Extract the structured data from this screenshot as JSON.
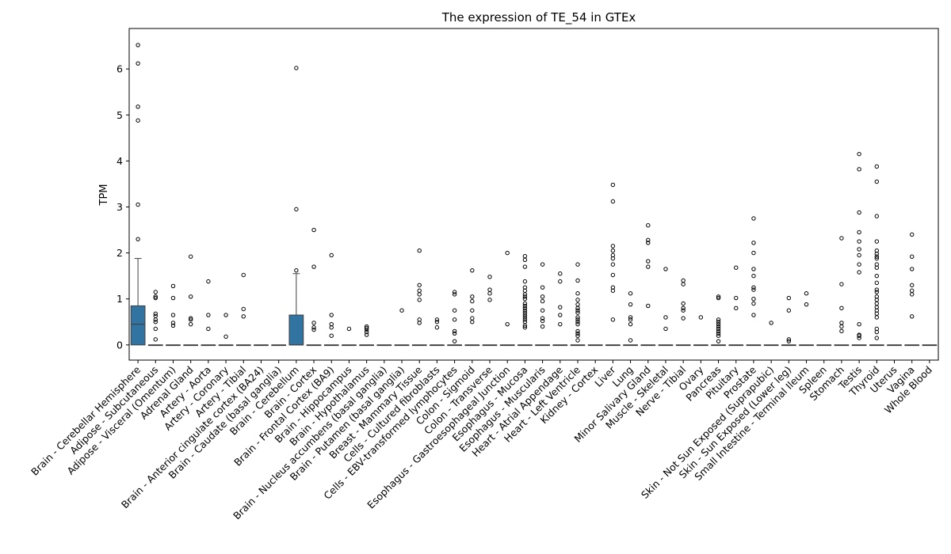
{
  "chart_data": {
    "type": "box",
    "title": "The expression of TE_54 in GTEx",
    "xlabel": "",
    "ylabel": "TPM",
    "ylim": [
      -0.33,
      6.88
    ],
    "yticks": [
      0,
      1,
      2,
      3,
      4,
      5,
      6
    ],
    "box_color": "#3274a1",
    "categories": [
      "Brain - Cerebellar Hemisphere",
      "Adipose - Subcutaneous",
      "Adipose - Visceral (Omentum)",
      "Adrenal Gland",
      "Artery - Aorta",
      "Artery - Coronary",
      "Artery - Tibial",
      "Brain - Anterior cingulate cortex (BA24)",
      "Brain - Caudate (basal ganglia)",
      "Brain - Cerebellum",
      "Brain - Cortex",
      "Brain - Frontal Cortex (BA9)",
      "Brain - Hippocampus",
      "Brain - Hypothalamus",
      "Brain - Nucleus accumbens (basal ganglia)",
      "Brain - Putamen (basal ganglia)",
      "Breast - Mammary Tissue",
      "Cells - Cultured fibroblasts",
      "Cells - EBV-transformed lymphocytes",
      "Colon - Sigmoid",
      "Colon - Transverse",
      "Esophagus - Gastroesophageal Junction",
      "Esophagus - Mucosa",
      "Esophagus - Muscularis",
      "Heart - Atrial Appendage",
      "Heart - Left Ventricle",
      "Kidney - Cortex",
      "Liver",
      "Lung",
      "Minor Salivary Gland",
      "Muscle - Skeletal",
      "Nerve - Tibial",
      "Ovary",
      "Pancreas",
      "Pituitary",
      "Prostate",
      "Skin - Not Sun Exposed (Suprapubic)",
      "Skin - Sun Exposed (Lower leg)",
      "Small Intestine - Terminal Ileum",
      "Spleen",
      "Stomach",
      "Testis",
      "Thyroid",
      "Uterus",
      "Vagina",
      "Whole Blood"
    ],
    "boxes": [
      {
        "q1": 0,
        "median": 0.45,
        "q3": 0.85,
        "whisker_low": 0,
        "whisker_high": 1.88,
        "outliers": [
          2.3,
          3.05,
          4.88,
          5.18,
          6.12,
          6.52
        ]
      },
      {
        "q1": 0,
        "median": 0,
        "q3": 0,
        "whisker_low": 0,
        "whisker_high": 0,
        "outliers": [
          0.12,
          0.35,
          0.5,
          0.55,
          0.63,
          0.68,
          1.02,
          1.05,
          1.15
        ]
      },
      {
        "q1": 0,
        "median": 0,
        "q3": 0,
        "whisker_low": 0,
        "whisker_high": 0,
        "outliers": [
          0.42,
          0.48,
          0.65,
          1.02,
          1.28
        ]
      },
      {
        "q1": 0,
        "median": 0,
        "q3": 0,
        "whisker_low": 0,
        "whisker_high": 0,
        "outliers": [
          0.45,
          0.55,
          0.58,
          1.05,
          1.92
        ]
      },
      {
        "q1": 0,
        "median": 0,
        "q3": 0,
        "whisker_low": 0,
        "whisker_high": 0,
        "outliers": [
          0.35,
          0.65,
          1.38
        ]
      },
      {
        "q1": 0,
        "median": 0,
        "q3": 0,
        "whisker_low": 0,
        "whisker_high": 0,
        "outliers": [
          0.18,
          0.65
        ]
      },
      {
        "q1": 0,
        "median": 0,
        "q3": 0,
        "whisker_low": 0,
        "whisker_high": 0,
        "outliers": [
          0.62,
          0.78,
          1.52
        ]
      },
      {
        "q1": 0,
        "median": 0,
        "q3": 0,
        "whisker_low": 0,
        "whisker_high": 0,
        "outliers": []
      },
      {
        "q1": 0,
        "median": 0,
        "q3": 0,
        "whisker_low": 0,
        "whisker_high": 0,
        "outliers": []
      },
      {
        "q1": 0,
        "median": 0,
        "q3": 0.65,
        "whisker_low": 0,
        "whisker_high": 1.55,
        "outliers": [
          1.62,
          2.95,
          6.02
        ]
      },
      {
        "q1": 0,
        "median": 0,
        "q3": 0,
        "whisker_low": 0,
        "whisker_high": 0,
        "outliers": [
          0.33,
          0.38,
          0.48,
          1.7,
          2.5
        ]
      },
      {
        "q1": 0,
        "median": 0,
        "q3": 0,
        "whisker_low": 0,
        "whisker_high": 0,
        "outliers": [
          0.2,
          0.38,
          0.45,
          0.65,
          1.95
        ]
      },
      {
        "q1": 0,
        "median": 0,
        "q3": 0,
        "whisker_low": 0,
        "whisker_high": 0,
        "outliers": [
          0.35
        ]
      },
      {
        "q1": 0,
        "median": 0,
        "q3": 0,
        "whisker_low": 0,
        "whisker_high": 0,
        "outliers": [
          0.22,
          0.28,
          0.33,
          0.37,
          0.4
        ]
      },
      {
        "q1": 0,
        "median": 0,
        "q3": 0,
        "whisker_low": 0,
        "whisker_high": 0,
        "outliers": []
      },
      {
        "q1": 0,
        "median": 0,
        "q3": 0,
        "whisker_low": 0,
        "whisker_high": 0,
        "outliers": [
          0.75
        ]
      },
      {
        "q1": 0,
        "median": 0,
        "q3": 0,
        "whisker_low": 0,
        "whisker_high": 0,
        "outliers": [
          0.48,
          0.55,
          0.98,
          1.1,
          1.18,
          1.3,
          2.05
        ]
      },
      {
        "q1": 0,
        "median": 0,
        "q3": 0,
        "whisker_low": 0,
        "whisker_high": 0,
        "outliers": [
          0.38,
          0.5,
          0.55
        ]
      },
      {
        "q1": 0,
        "median": 0,
        "q3": 0,
        "whisker_low": 0,
        "whisker_high": 0,
        "outliers": [
          0.08,
          0.25,
          0.3,
          0.55,
          0.75,
          1.1,
          1.15
        ]
      },
      {
        "q1": 0,
        "median": 0,
        "q3": 0,
        "whisker_low": 0,
        "whisker_high": 0,
        "outliers": [
          0.5,
          0.58,
          0.75,
          0.95,
          1.05,
          1.62
        ]
      },
      {
        "q1": 0,
        "median": 0,
        "q3": 0,
        "whisker_low": 0,
        "whisker_high": 0,
        "outliers": [
          0.98,
          1.12,
          1.2,
          1.48
        ]
      },
      {
        "q1": 0,
        "median": 0,
        "q3": 0,
        "whisker_low": 0,
        "whisker_high": 0,
        "outliers": [
          0.45,
          2.0
        ]
      },
      {
        "q1": 0,
        "median": 0,
        "q3": 0,
        "whisker_low": 0,
        "whisker_high": 0,
        "outliers": [
          0.38,
          0.42,
          0.5,
          0.55,
          0.6,
          0.65,
          0.7,
          0.75,
          0.8,
          0.85,
          0.9,
          1.0,
          1.05,
          1.1,
          1.18,
          1.25,
          1.38,
          1.7,
          1.85,
          1.93
        ]
      },
      {
        "q1": 0,
        "median": 0,
        "q3": 0,
        "whisker_low": 0,
        "whisker_high": 0,
        "outliers": [
          0.4,
          0.52,
          0.58,
          0.75,
          0.95,
          1.05,
          1.25,
          1.75
        ]
      },
      {
        "q1": 0,
        "median": 0,
        "q3": 0,
        "whisker_low": 0,
        "whisker_high": 0,
        "outliers": [
          0.45,
          0.65,
          0.82,
          1.38,
          1.55
        ]
      },
      {
        "q1": 0,
        "median": 0,
        "q3": 0,
        "whisker_low": 0,
        "whisker_high": 0,
        "outliers": [
          0.1,
          0.2,
          0.25,
          0.3,
          0.45,
          0.5,
          0.55,
          0.6,
          0.7,
          0.75,
          0.8,
          0.88,
          0.98,
          1.12,
          1.4,
          1.75
        ]
      },
      {
        "q1": 0,
        "median": 0,
        "q3": 0,
        "whisker_low": 0,
        "whisker_high": 0,
        "outliers": []
      },
      {
        "q1": 0,
        "median": 0,
        "q3": 0,
        "whisker_low": 0,
        "whisker_high": 0,
        "outliers": [
          0.55,
          1.18,
          1.25,
          1.52,
          1.75,
          1.88,
          1.95,
          2.05,
          2.15,
          3.12,
          3.48
        ]
      },
      {
        "q1": 0,
        "median": 0,
        "q3": 0,
        "whisker_low": 0,
        "whisker_high": 0,
        "outliers": [
          0.1,
          0.45,
          0.55,
          0.6,
          0.88,
          1.12
        ]
      },
      {
        "q1": 0,
        "median": 0,
        "q3": 0,
        "whisker_low": 0,
        "whisker_high": 0,
        "outliers": [
          0.85,
          1.7,
          1.82,
          2.22,
          2.28,
          2.6
        ]
      },
      {
        "q1": 0,
        "median": 0,
        "q3": 0,
        "whisker_low": 0,
        "whisker_high": 0,
        "outliers": [
          0.35,
          0.6,
          1.65
        ]
      },
      {
        "q1": 0,
        "median": 0,
        "q3": 0,
        "whisker_low": 0,
        "whisker_high": 0,
        "outliers": [
          0.58,
          0.75,
          0.8,
          0.9,
          1.32,
          1.4
        ]
      },
      {
        "q1": 0,
        "median": 0,
        "q3": 0,
        "whisker_low": 0,
        "whisker_high": 0,
        "outliers": [
          0.6
        ]
      },
      {
        "q1": 0,
        "median": 0,
        "q3": 0,
        "whisker_low": 0,
        "whisker_high": 0,
        "outliers": [
          0.08,
          0.2,
          0.25,
          0.3,
          0.35,
          0.4,
          0.45,
          0.5,
          0.55,
          1.02,
          1.05
        ]
      },
      {
        "q1": 0,
        "median": 0,
        "q3": 0,
        "whisker_low": 0,
        "whisker_high": 0,
        "outliers": [
          0.8,
          1.02,
          1.68
        ]
      },
      {
        "q1": 0,
        "median": 0,
        "q3": 0,
        "whisker_low": 0,
        "whisker_high": 0,
        "outliers": [
          0.65,
          0.9,
          1.0,
          1.2,
          1.25,
          1.5,
          1.65,
          2.0,
          2.22,
          2.75
        ]
      },
      {
        "q1": 0,
        "median": 0,
        "q3": 0,
        "whisker_low": 0,
        "whisker_high": 0,
        "outliers": [
          0.48
        ]
      },
      {
        "q1": 0,
        "median": 0,
        "q3": 0,
        "whisker_low": 0,
        "whisker_high": 0,
        "outliers": [
          0.08,
          0.12,
          0.75,
          1.02
        ]
      },
      {
        "q1": 0,
        "median": 0,
        "q3": 0,
        "whisker_low": 0,
        "whisker_high": 0,
        "outliers": [
          0.88,
          1.12
        ]
      },
      {
        "q1": 0,
        "median": 0,
        "q3": 0,
        "whisker_low": 0,
        "whisker_high": 0,
        "outliers": []
      },
      {
        "q1": 0,
        "median": 0,
        "q3": 0,
        "whisker_low": 0,
        "whisker_high": 0,
        "outliers": [
          0.3,
          0.4,
          0.48,
          0.8,
          1.32,
          2.32
        ]
      },
      {
        "q1": 0,
        "median": 0,
        "q3": 0,
        "whisker_low": 0,
        "whisker_high": 0,
        "outliers": [
          0.15,
          0.2,
          0.22,
          0.45,
          1.58,
          1.75,
          1.95,
          2.08,
          2.25,
          2.45,
          2.88,
          3.82,
          4.15
        ]
      },
      {
        "q1": 0,
        "median": 0,
        "q3": 0,
        "whisker_low": 0,
        "whisker_high": 0,
        "outliers": [
          0.15,
          0.28,
          0.35,
          0.6,
          0.68,
          0.75,
          0.82,
          0.9,
          0.98,
          1.05,
          1.15,
          1.2,
          1.35,
          1.5,
          1.68,
          1.75,
          1.88,
          1.92,
          1.98,
          2.05,
          2.25,
          2.8,
          3.55,
          3.88
        ]
      },
      {
        "q1": 0,
        "median": 0,
        "q3": 0,
        "whisker_low": 0,
        "whisker_high": 0,
        "outliers": []
      },
      {
        "q1": 0,
        "median": 0,
        "q3": 0,
        "whisker_low": 0,
        "whisker_high": 0,
        "outliers": [
          0.62,
          1.1,
          1.18,
          1.3,
          1.65,
          1.92,
          2.4
        ]
      },
      {
        "q1": 0,
        "median": 0,
        "q3": 0,
        "whisker_low": 0,
        "whisker_high": 0,
        "outliers": []
      }
    ]
  }
}
